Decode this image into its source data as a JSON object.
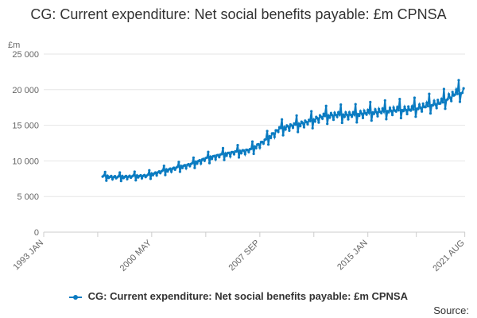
{
  "chart_data": {
    "type": "line",
    "title": "CG: Current expenditure: Net social benefits payable: £m CPNSA",
    "ylabel": "£m",
    "ylim": [
      0,
      25000
    ],
    "y_ticks": [
      "0",
      "5 000",
      "10 000",
      "15 000",
      "20 000",
      "25 000"
    ],
    "y_tick_values": [
      0,
      5000,
      10000,
      15000,
      20000,
      25000
    ],
    "x_tick_labels": [
      "1993 JAN",
      "2000 MAY",
      "2007 SEP",
      "2015 JAN",
      "2021 AUG"
    ],
    "x_tick_years": [
      1993.0,
      2000.33,
      2007.67,
      2015.0,
      2021.58
    ],
    "xlim": [
      1993.0,
      2021.6
    ],
    "grid": true,
    "legend_position": "bottom",
    "series": [
      {
        "name": "CG: Current expenditure: Net social benefits payable: £m CPNSA",
        "color": "#0a7bc1",
        "anchor_years": [
          1997.0,
          1998.0,
          1999.0,
          2000.0,
          2001.0,
          2002.0,
          2003.0,
          2004.0,
          2005.0,
          2006.0,
          2007.0,
          2008.0,
          2009.0,
          2010.0,
          2011.0,
          2012.0,
          2013.0,
          2014.0,
          2015.0,
          2016.0,
          2017.0,
          2018.0,
          2019.0,
          2020.0,
          2021.0,
          2021.58
        ],
        "anchor_values": [
          7800,
          7700,
          7800,
          7900,
          8500,
          9000,
          9500,
          10300,
          10800,
          11200,
          11500,
          12800,
          14500,
          15000,
          15500,
          16300,
          16500,
          16500,
          16800,
          17000,
          17200,
          17300,
          17800,
          18300,
          19600,
          19800
        ]
      }
    ]
  },
  "source_label": "Source:"
}
